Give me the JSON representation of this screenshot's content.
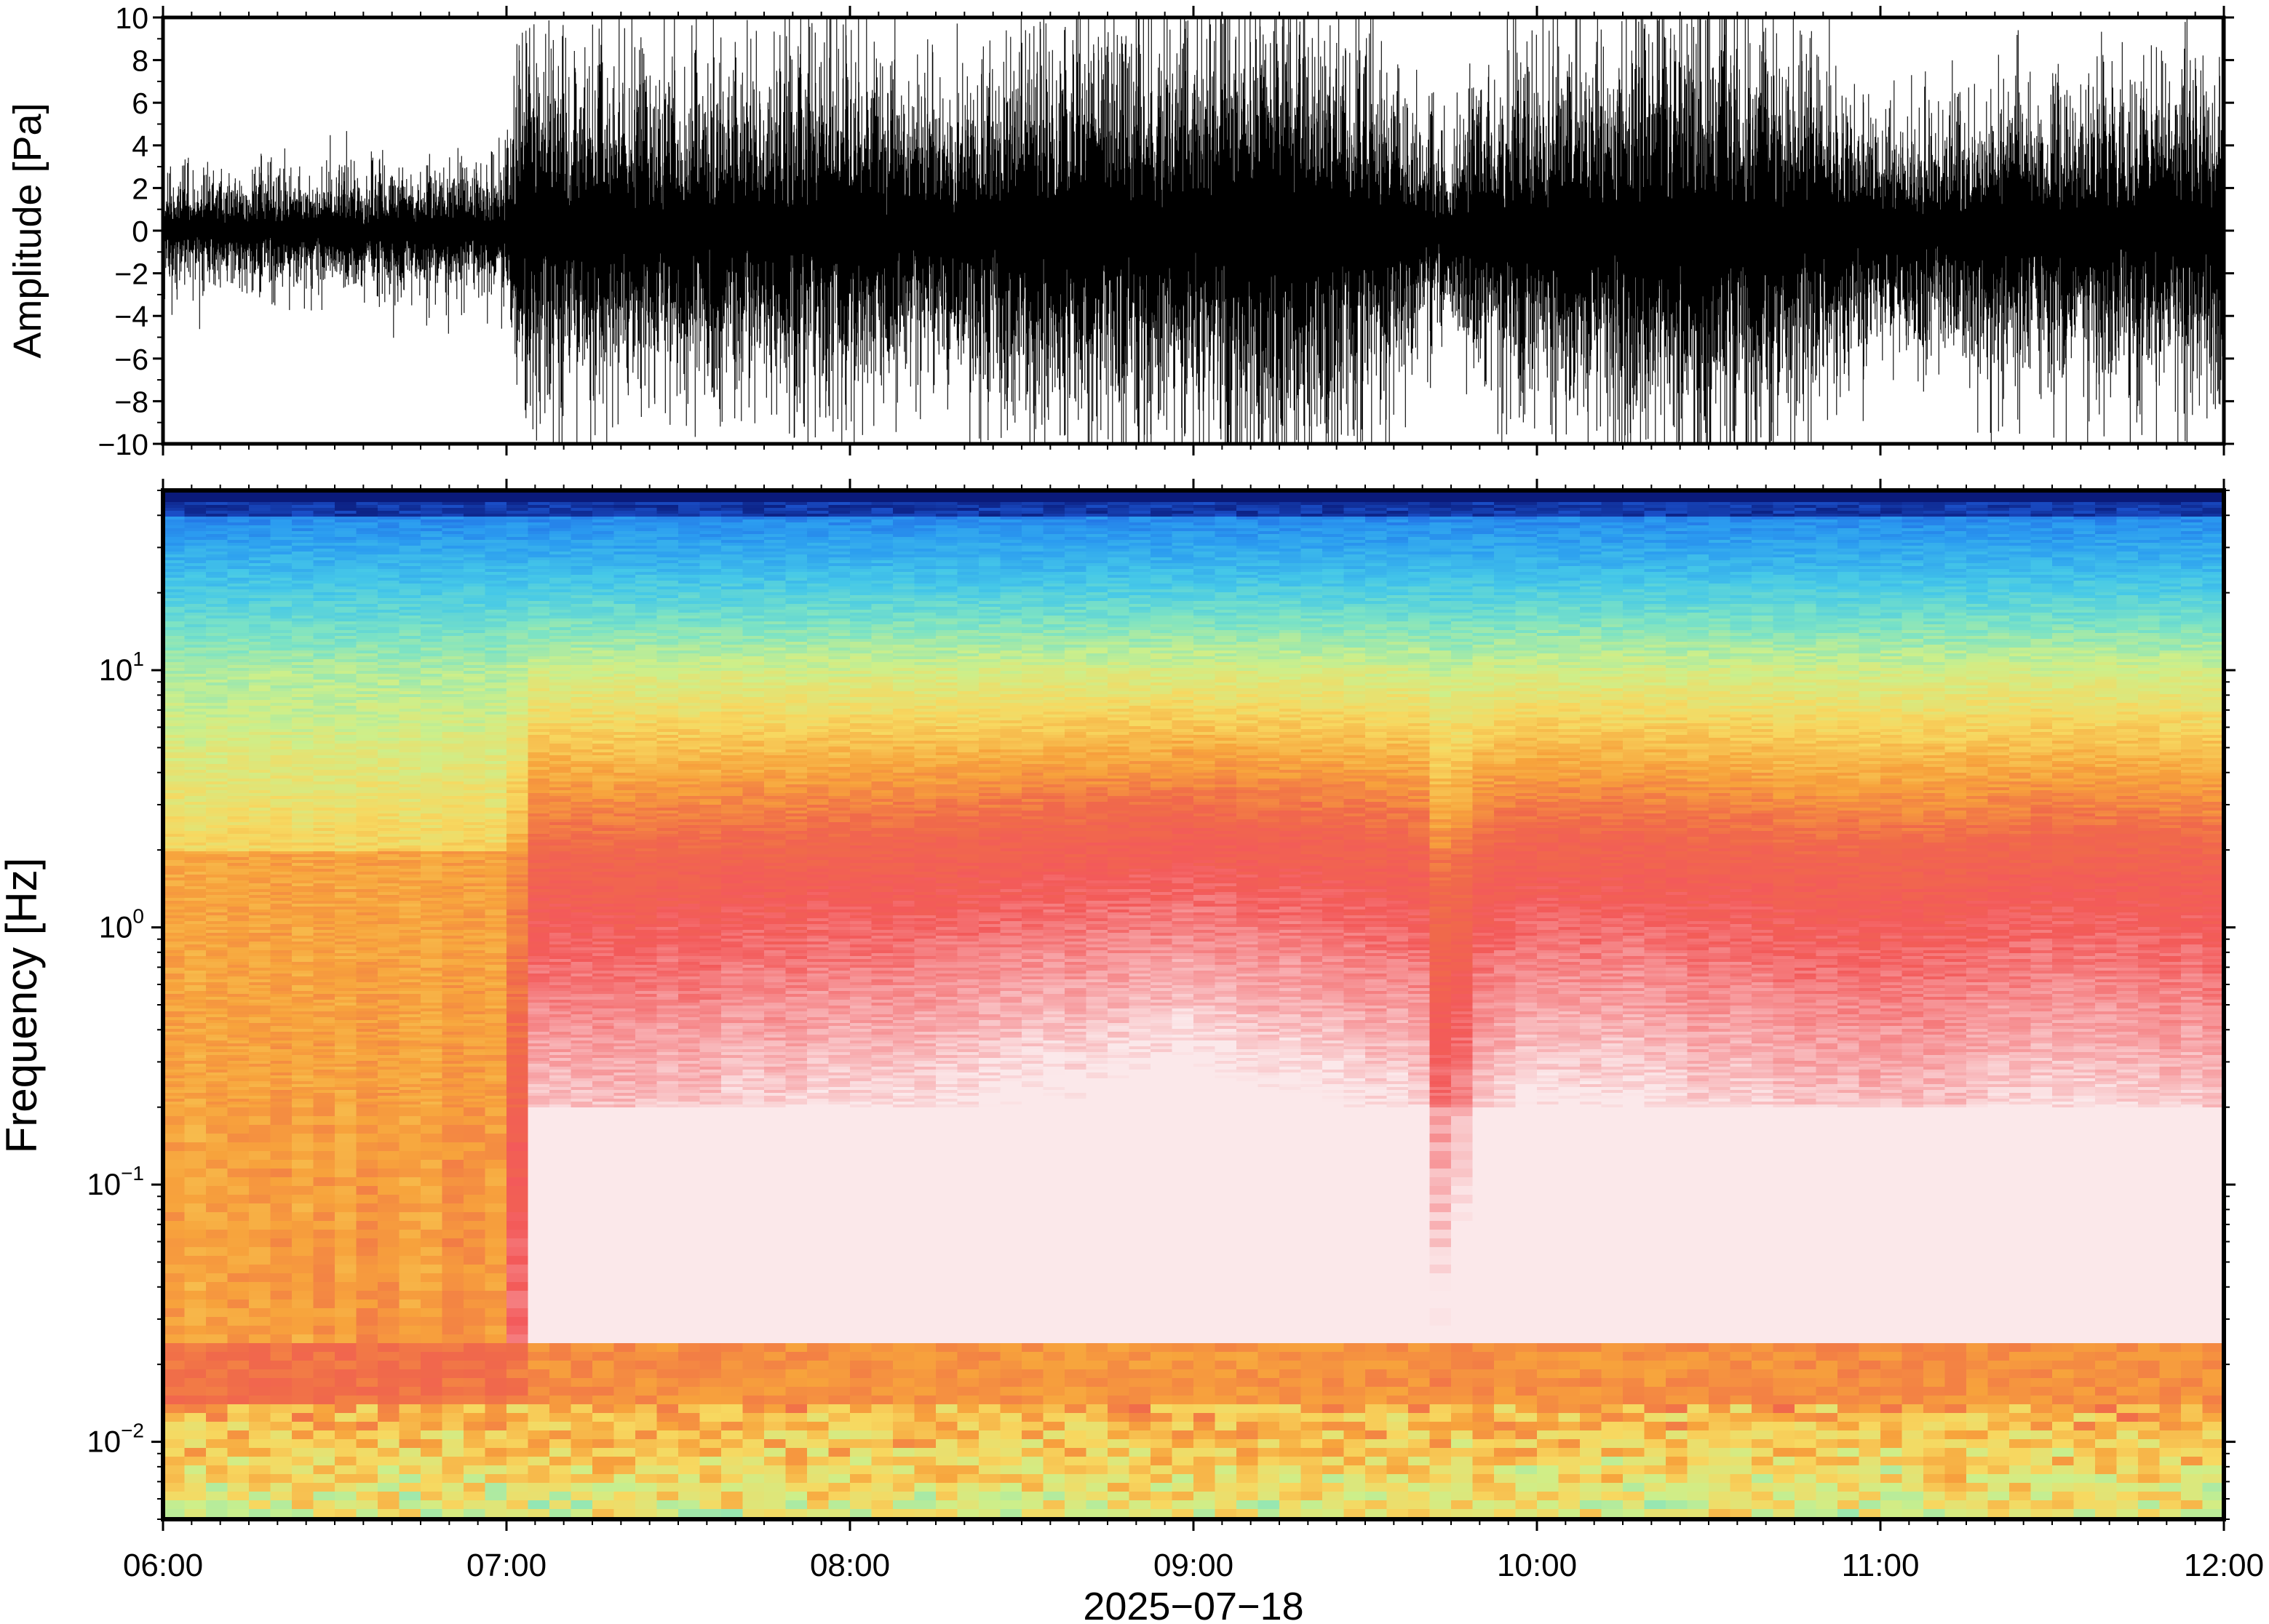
{
  "chart_data": [
    {
      "type": "line",
      "panel": "waveform",
      "ylabel": "Amplitude [Pa]",
      "ylim": [
        -10,
        10
      ],
      "yticks": [
        10,
        8,
        6,
        4,
        2,
        0,
        -2,
        -4,
        -6,
        -8,
        -10
      ],
      "ytick_labels": [
        "10",
        "8",
        "6",
        "4",
        "2",
        "0",
        "−2",
        "−4",
        "−6",
        "−8",
        "−10"
      ],
      "xlim": [
        "06:00",
        "12:00"
      ],
      "series": [
        {
          "color": "#000000",
          "envelope_time": [
            "06:00",
            "06:30",
            "06:55",
            "07:00",
            "07:02",
            "07:30",
            "08:00",
            "08:15",
            "08:30",
            "08:45",
            "09:00",
            "09:10",
            "09:20",
            "09:30",
            "09:40",
            "09:45",
            "09:50",
            "10:00",
            "10:15",
            "10:30",
            "10:45",
            "10:55",
            "11:00",
            "11:20",
            "11:40",
            "12:00"
          ],
          "envelope_amplitude": [
            1.8,
            2.0,
            2.3,
            2.6,
            6.0,
            5.5,
            6.2,
            4.8,
            6.5,
            7.0,
            7.5,
            8.5,
            8.0,
            6.5,
            3.8,
            3.2,
            5.5,
            6.0,
            7.0,
            8.5,
            6.5,
            4.8,
            4.0,
            4.5,
            5.5,
            6.0
          ]
        }
      ]
    },
    {
      "type": "heatmap",
      "panel": "spectrogram",
      "ylabel": "Frequency [Hz]",
      "xlabel": "2025−07−18",
      "yscale": "log",
      "ylim": [
        0.005,
        50
      ],
      "yticks": [
        0.01,
        0.1,
        1,
        10
      ],
      "ytick_labels": [
        {
          "base": "10",
          "exp": "−2"
        },
        {
          "base": "10",
          "exp": "−1"
        },
        {
          "base": "10",
          "exp": "0"
        },
        {
          "base": "10",
          "exp": "1"
        }
      ],
      "xlim": [
        "06:00",
        "12:00"
      ],
      "xtick_labels": [
        "06:00",
        "07:00",
        "08:00",
        "09:00",
        "10:00",
        "11:00",
        "12:00"
      ],
      "colormap": [
        "#0a1a7a",
        "#1f5fe0",
        "#2b9cf0",
        "#45c8e8",
        "#7de3c4",
        "#cdef8a",
        "#f7d860",
        "#f7a33c",
        "#f06a4a",
        "#f35a5a",
        "#f7a0a3",
        "#fbe8ea"
      ],
      "level_time": [
        "06:00",
        "07:00",
        "07:05",
        "08:00",
        "09:00",
        "09:40",
        "09:45",
        "09:48",
        "10:00",
        "11:00",
        "11:30",
        "12:00"
      ],
      "level_relative": [
        0.0,
        0.05,
        1.0,
        1.1,
        1.35,
        1.1,
        0.35,
        1.0,
        1.2,
        1.0,
        1.1,
        1.05
      ]
    }
  ]
}
